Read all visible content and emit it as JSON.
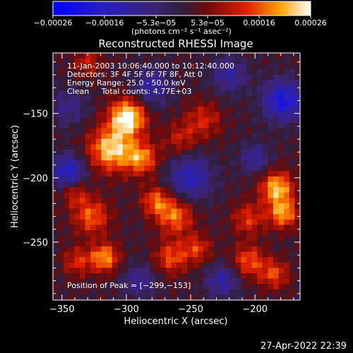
{
  "chart_data": {
    "type": "heatmap",
    "title": "Reconstructed RHESSI Image",
    "xlabel": "Heliocentric X (arcsec)",
    "ylabel": "Heliocentric Y (arcsec)",
    "xlim": [
      -357,
      -165
    ],
    "ylim": [
      -295,
      -103
    ],
    "x_ticks": [
      {
        "value": -350,
        "label": "−350"
      },
      {
        "value": -300,
        "label": "−300"
      },
      {
        "value": -250,
        "label": "−250"
      },
      {
        "value": -200,
        "label": "−200"
      }
    ],
    "y_ticks": [
      {
        "value": -150,
        "label": "−150"
      },
      {
        "value": -200,
        "label": "−200"
      },
      {
        "value": -250,
        "label": "−250"
      }
    ],
    "annotations": [
      "11-Jan-2003 10:06:40.000 to 10:12:40.000",
      "Detectors: 3F 4F 5F 6F 7F 8F, Att 0",
      "Energy Range: 25.0 - 50.0 keV",
      "Clean     Total counts: 4.77E+03"
    ],
    "peak_label": "Position of Peak = [−299,−153]",
    "colorbar": {
      "min": -0.00026,
      "max": 0.00026,
      "tick_labels": [
        "−0.00026",
        "−0.00016",
        "−5.3e−05",
        "5.3e−05",
        "0.00016",
        "0.00026"
      ],
      "unit_label": "(photons cm⁻² s⁻¹ asec⁻²)"
    },
    "sources": [
      {
        "x": -299,
        "y": -153,
        "amp": 1.0,
        "sigma": 10
      },
      {
        "x": -312,
        "y": -178,
        "amp": 0.85,
        "sigma": 12
      },
      {
        "x": -288,
        "y": -185,
        "amp": 0.65,
        "sigma": 9
      },
      {
        "x": -330,
        "y": -110,
        "amp": 0.35,
        "sigma": 8
      },
      {
        "x": -183,
        "y": -208,
        "amp": 0.8,
        "sigma": 9
      },
      {
        "x": -178,
        "y": -228,
        "amp": 0.7,
        "sigma": 8
      },
      {
        "x": -205,
        "y": -232,
        "amp": 0.45,
        "sigma": 9
      },
      {
        "x": -262,
        "y": -230,
        "amp": 0.62,
        "sigma": 10
      },
      {
        "x": -277,
        "y": -218,
        "amp": 0.55,
        "sigma": 8
      },
      {
        "x": -327,
        "y": -230,
        "amp": 0.58,
        "sigma": 10
      },
      {
        "x": -340,
        "y": -212,
        "amp": 0.4,
        "sigma": 7
      },
      {
        "x": -317,
        "y": -262,
        "amp": 0.7,
        "sigma": 8
      },
      {
        "x": -265,
        "y": -262,
        "amp": 0.52,
        "sigma": 9
      },
      {
        "x": -245,
        "y": -255,
        "amp": 0.45,
        "sigma": 8
      },
      {
        "x": -205,
        "y": -265,
        "amp": 0.55,
        "sigma": 9
      },
      {
        "x": -185,
        "y": -275,
        "amp": 0.5,
        "sigma": 8
      },
      {
        "x": -240,
        "y": -155,
        "amp": 0.4,
        "sigma": 10
      },
      {
        "x": -258,
        "y": -170,
        "amp": 0.35,
        "sigma": 9
      },
      {
        "x": -338,
        "y": -265,
        "amp": 0.42,
        "sigma": 8
      },
      {
        "x": -178,
        "y": -140,
        "amp": -0.8,
        "sigma": 11
      },
      {
        "x": -345,
        "y": -195,
        "amp": -0.7,
        "sigma": 9
      },
      {
        "x": -250,
        "y": -200,
        "amp": -0.6,
        "sigma": 12
      },
      {
        "x": -280,
        "y": -130,
        "amp": -0.5,
        "sigma": 10
      },
      {
        "x": -220,
        "y": -120,
        "amp": -0.45,
        "sigma": 10
      },
      {
        "x": -225,
        "y": -280,
        "amp": -0.5,
        "sigma": 9
      },
      {
        "x": -290,
        "y": -280,
        "amp": -0.4,
        "sigma": 9
      },
      {
        "x": -200,
        "y": -185,
        "amp": -0.45,
        "sigma": 8
      },
      {
        "x": -345,
        "y": -145,
        "amp": -0.35,
        "sigma": 10
      }
    ]
  },
  "footer": {
    "timestamp": "27-Apr-2022 22:39"
  }
}
